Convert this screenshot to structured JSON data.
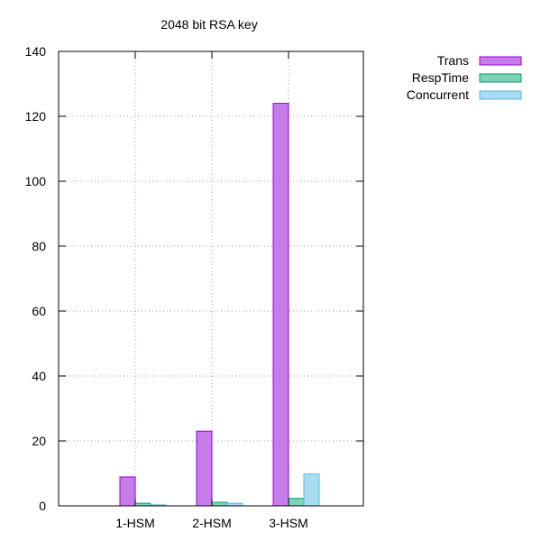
{
  "chart_data": {
    "type": "bar",
    "title": "2048 bit RSA key",
    "xlabel": "",
    "ylabel": "",
    "categories": [
      "1-HSM",
      "2-HSM",
      "3-HSM"
    ],
    "ylim": [
      0,
      140
    ],
    "yticks": [
      0,
      20,
      40,
      60,
      80,
      100,
      120,
      140
    ],
    "grid": true,
    "legend_position": "top-right, outside plot",
    "series": [
      {
        "name": "Trans",
        "values": [
          8.9,
          23.0,
          124.0
        ],
        "color": "#c77ceb",
        "stroke": "#9400d3"
      },
      {
        "name": "RespTime",
        "values": [
          0.8,
          1.1,
          2.3
        ],
        "color": "#7ed3b4",
        "stroke": "#009e73"
      },
      {
        "name": "Concurrent",
        "values": [
          0.3,
          0.8,
          9.8
        ],
        "color": "#aadcf0",
        "stroke": "#56b4e9"
      }
    ]
  }
}
